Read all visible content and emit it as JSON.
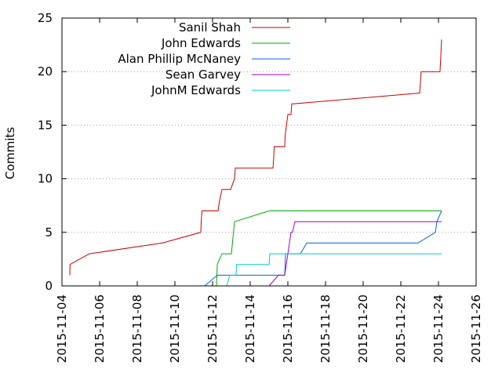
{
  "chart_data": {
    "type": "line",
    "title": "",
    "xlabel": "",
    "ylabel": "Commits",
    "x_is_date": true,
    "xlim": [
      "2015-11-04",
      "2015-11-26"
    ],
    "ylim": [
      0,
      25
    ],
    "x_ticks": [
      "2015-11-04",
      "2015-11-06",
      "2015-11-08",
      "2015-11-10",
      "2015-11-12",
      "2015-11-14",
      "2015-11-16",
      "2015-11-18",
      "2015-11-20",
      "2015-11-22",
      "2015-11-24",
      "2015-11-26"
    ],
    "y_ticks": [
      0,
      5,
      10,
      15,
      20,
      25
    ],
    "grid": "horizontal dotted",
    "legend_position": "top-left",
    "series": [
      {
        "name": "Sanil Shah",
        "color": "#cc0000",
        "points": [
          [
            "2015-11-04 10:00",
            1
          ],
          [
            "2015-11-04 10:20",
            2
          ],
          [
            "2015-11-05 11:00",
            3
          ],
          [
            "2015-11-09 08:00",
            4
          ],
          [
            "2015-11-11 09:00",
            5
          ],
          [
            "2015-11-11 09:30",
            6
          ],
          [
            "2015-11-11 10:30",
            7
          ],
          [
            "2015-11-12 07:00",
            7
          ],
          [
            "2015-11-12 09:00",
            8
          ],
          [
            "2015-11-12 12:00",
            9
          ],
          [
            "2015-11-12 23:00",
            9
          ],
          [
            "2015-11-13 04:00",
            10
          ],
          [
            "2015-11-13 05:00",
            11
          ],
          [
            "2015-11-15 05:00",
            11
          ],
          [
            "2015-11-15 06:00",
            12
          ],
          [
            "2015-11-15 06:30",
            13
          ],
          [
            "2015-11-15 20:00",
            13
          ],
          [
            "2015-11-15 20:30",
            14
          ],
          [
            "2015-11-16 00:00",
            16
          ],
          [
            "2015-11-16 04:00",
            16
          ],
          [
            "2015-11-16 05:00",
            17
          ],
          [
            "2015-11-16 08:00",
            17
          ],
          [
            "2015-11-23 00:00",
            18
          ],
          [
            "2015-11-23 02:00",
            20
          ],
          [
            "2015-11-24 02:00",
            20
          ],
          [
            "2015-11-24 04:00",
            23
          ]
        ]
      },
      {
        "name": "John Edwards",
        "color": "#00aa00",
        "points": [
          [
            "2015-11-12 05:00",
            0
          ],
          [
            "2015-11-12 06:00",
            2
          ],
          [
            "2015-11-12 12:00",
            3
          ],
          [
            "2015-11-13 00:00",
            3
          ],
          [
            "2015-11-13 04:00",
            6
          ],
          [
            "2015-11-15 00:00",
            7
          ],
          [
            "2015-11-24 04:00",
            7
          ]
        ]
      },
      {
        "name": "Alan Phillip McNaney",
        "color": "#0066dd",
        "points": [
          [
            "2015-11-11 14:00",
            0
          ],
          [
            "2015-11-12 06:00",
            1
          ],
          [
            "2015-11-12 10:00",
            1
          ],
          [
            "2015-11-15 20:00",
            1
          ],
          [
            "2015-11-15 21:00",
            3
          ],
          [
            "2015-11-16 16:00",
            3
          ],
          [
            "2015-11-17 00:00",
            4
          ],
          [
            "2015-11-22 22:00",
            4
          ],
          [
            "2015-11-23 20:00",
            5
          ],
          [
            "2015-11-23 22:00",
            6
          ],
          [
            "2015-11-24 04:00",
            7
          ]
        ]
      },
      {
        "name": "Sean Garvey",
        "color": "#9900cc",
        "points": [
          [
            "2015-11-15 00:00",
            0
          ],
          [
            "2015-11-15 12:00",
            1
          ],
          [
            "2015-11-15 20:00",
            1
          ],
          [
            "2015-11-16 00:00",
            3
          ],
          [
            "2015-11-16 04:00",
            5
          ],
          [
            "2015-11-16 06:00",
            5
          ],
          [
            "2015-11-16 09:00",
            6
          ],
          [
            "2015-11-24 04:00",
            6
          ]
        ]
      },
      {
        "name": "JohnM Edwards",
        "color": "#00cccc",
        "points": [
          [
            "2015-11-12 18:00",
            0
          ],
          [
            "2015-11-12 22:00",
            1
          ],
          [
            "2015-11-13 06:00",
            1
          ],
          [
            "2015-11-13 06:30",
            2
          ],
          [
            "2015-11-15 00:00",
            2
          ],
          [
            "2015-11-15 01:00",
            3
          ],
          [
            "2015-11-24 04:00",
            3
          ]
        ]
      }
    ]
  }
}
